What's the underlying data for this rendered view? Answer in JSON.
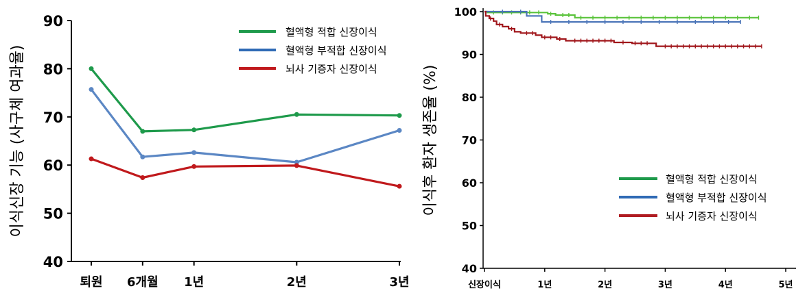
{
  "chart_data": [
    {
      "type": "line",
      "ylabel": "이식신장 기능 (사구체 여과율)",
      "ylim": [
        40,
        90
      ],
      "yticks": [
        40,
        50,
        60,
        70,
        80,
        90
      ],
      "categories": [
        "퇴원",
        "6개월",
        "1년",
        "2년",
        "3년"
      ],
      "x": [
        0,
        0.5,
        1,
        2,
        3
      ],
      "legend_position": "top-right",
      "series": [
        {
          "name": "혈액형 적합 신장이식",
          "color": "#1e9a4b",
          "values": [
            80.0,
            67.0,
            67.3,
            70.5,
            70.3
          ]
        },
        {
          "name": "혈액형 부적합 신장이식",
          "color": "#5b87c4",
          "values": [
            75.7,
            61.7,
            62.6,
            60.6,
            67.2
          ]
        },
        {
          "name": "뇌사 기증자 신장이식",
          "color": "#c0191c",
          "values": [
            61.3,
            57.4,
            59.7,
            59.9,
            55.6
          ]
        }
      ]
    },
    {
      "type": "line",
      "ylabel": "이식후 환자 생존율 (%)",
      "ylim": [
        40,
        100
      ],
      "yticks": [
        40,
        50,
        60,
        70,
        80,
        90,
        100
      ],
      "xlim": [
        0,
        5
      ],
      "xtick_labels": [
        "신장이식",
        "1년",
        "2년",
        "3년",
        "4년",
        "5년"
      ],
      "legend_position": "bottom-right",
      "series": [
        {
          "name": "혈액형 적합 신장이식",
          "color": "#5ac33b",
          "legend_color": "#1e9a4b",
          "steps": [
            [
              0,
              100
            ],
            [
              0.05,
              99.8
            ],
            [
              1.05,
              99.5
            ],
            [
              1.18,
              99.2
            ],
            [
              1.5,
              98.6
            ],
            [
              4.55,
              98.6
            ]
          ],
          "censor": [
            0.15,
            0.3,
            0.45,
            0.6,
            0.75,
            0.9,
            1.1,
            1.3,
            1.4,
            1.6,
            1.8,
            2.0,
            2.2,
            2.4,
            2.6,
            2.8,
            3.0,
            3.2,
            3.4,
            3.6,
            3.8,
            4.0,
            4.2,
            4.4,
            4.55
          ]
        },
        {
          "name": "혈액형 부적합 신장이식",
          "color": "#4a74b8",
          "legend_color": "#2f6ab5",
          "steps": [
            [
              0,
              100
            ],
            [
              0.7,
              99.0
            ],
            [
              0.95,
              97.6
            ],
            [
              4.25,
              97.6
            ]
          ],
          "censor": [
            0.3,
            0.6,
            1.1,
            1.4,
            1.7,
            2.0,
            2.3,
            2.6,
            2.9,
            3.2,
            3.5,
            3.8,
            4.05,
            4.25
          ]
        },
        {
          "name": "뇌사 기증자 신장이식",
          "color": "#a0161b",
          "legend_color": "#b01c22",
          "steps": [
            [
              0,
              100
            ],
            [
              0.02,
              99.0
            ],
            [
              0.08,
              98.4
            ],
            [
              0.15,
              97.8
            ],
            [
              0.2,
              97.0
            ],
            [
              0.3,
              96.5
            ],
            [
              0.4,
              96.0
            ],
            [
              0.5,
              95.3
            ],
            [
              0.6,
              95.0
            ],
            [
              0.85,
              94.5
            ],
            [
              0.95,
              94.0
            ],
            [
              1.2,
              93.6
            ],
            [
              1.35,
              93.2
            ],
            [
              2.15,
              92.8
            ],
            [
              2.45,
              92.6
            ],
            [
              2.85,
              91.9
            ],
            [
              4.6,
              91.9
            ]
          ],
          "censor": [
            0.1,
            0.25,
            0.45,
            0.7,
            0.8,
            1.0,
            1.1,
            1.25,
            1.5,
            1.6,
            1.7,
            1.8,
            1.9,
            2.0,
            2.1,
            2.3,
            2.5,
            2.6,
            2.7,
            3.0,
            3.1,
            3.2,
            3.3,
            3.4,
            3.5,
            3.6,
            3.7,
            3.8,
            3.9,
            4.0,
            4.1,
            4.2,
            4.3,
            4.4,
            4.5,
            4.6
          ]
        }
      ]
    }
  ]
}
